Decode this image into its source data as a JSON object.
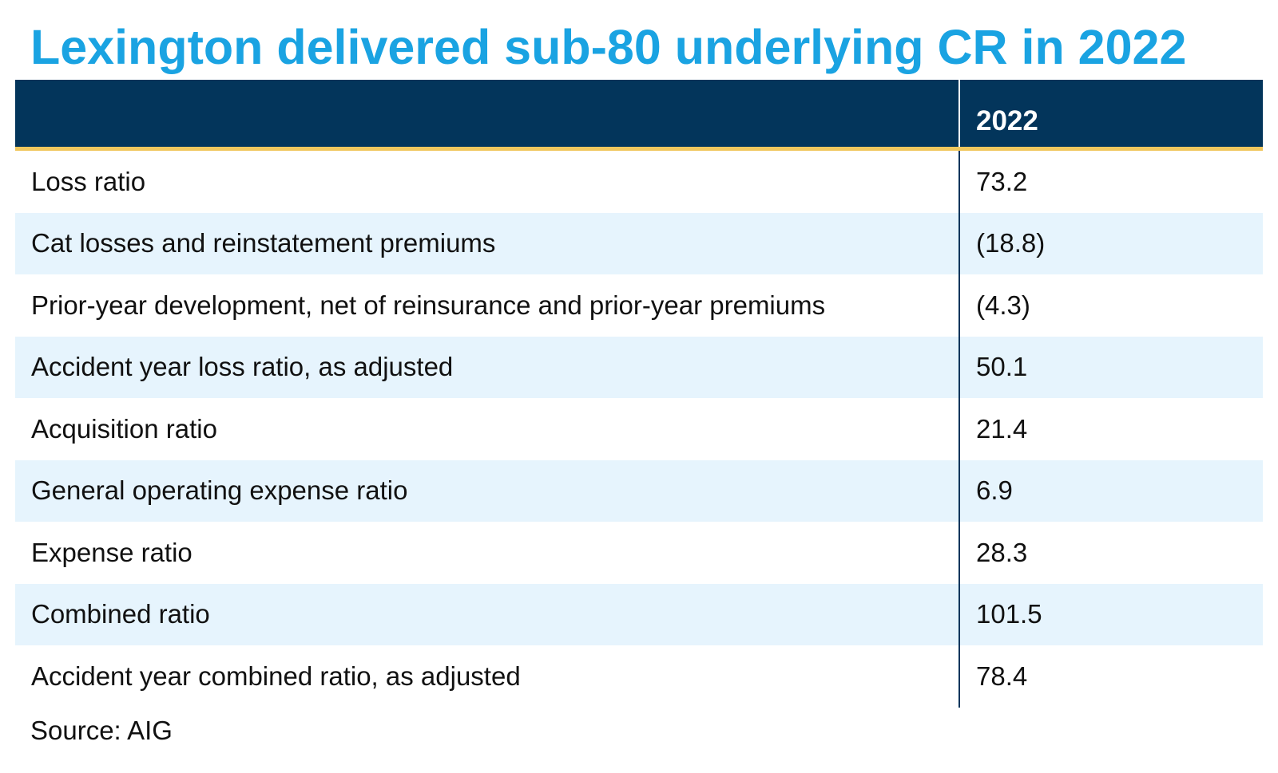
{
  "chart_data": {
    "type": "table",
    "title": "Lexington delivered sub-80 underlying CR in 2022",
    "columns": [
      "",
      "2022"
    ],
    "rows": [
      {
        "label": "Loss ratio",
        "value": "73.2"
      },
      {
        "label": "Cat losses and reinstatement premiums",
        "value": "(18.8)"
      },
      {
        "label": "Prior-year development, net of reinsurance and prior-year premiums",
        "value": "(4.3)"
      },
      {
        "label": "Accident year loss ratio, as adjusted",
        "value": "50.1"
      },
      {
        "label": "Acquisition ratio",
        "value": "21.4"
      },
      {
        "label": "General operating expense ratio",
        "value": "6.9"
      },
      {
        "label": "Expense ratio",
        "value": "28.3"
      },
      {
        "label": "Combined ratio",
        "value": "101.5"
      },
      {
        "label": "Accident year combined ratio, as adjusted",
        "value": "78.4"
      }
    ],
    "source": "Source: AIG"
  },
  "colors": {
    "title": "#1aa3e2",
    "header_background": "#03355b",
    "header_rule": "#f0c75e",
    "stripe": "#e6f4fd"
  }
}
